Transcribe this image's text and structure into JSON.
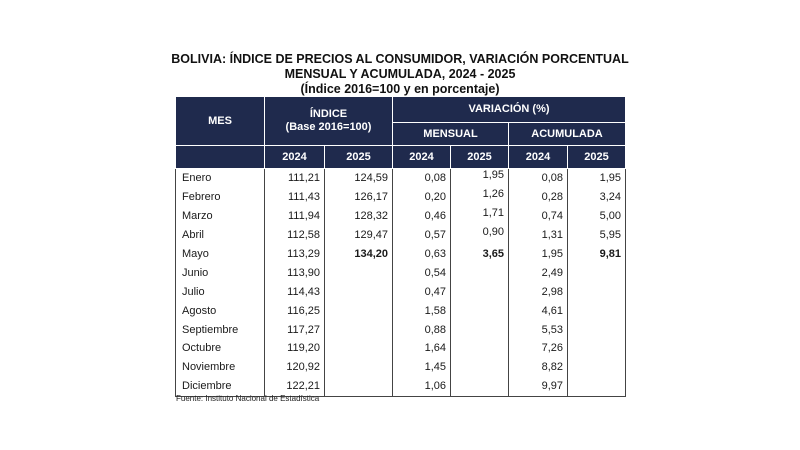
{
  "title": {
    "line1": "BOLIVIA: ÍNDICE DE PRECIOS AL CONSUMIDOR, VARIACIÓN PORCENTUAL",
    "line2": "MENSUAL Y ACUMULADA, 2024 - 2025",
    "line3": "(Índice 2016=100 y en porcentaje)"
  },
  "headers": {
    "mes": "MES",
    "indice_line1": "ÍNDICE",
    "indice_line2": "(Base 2016=100)",
    "variacion": "VARIACIÓN (%)",
    "mensual": "MENSUAL",
    "acumulada": "ACUMULADA",
    "years": [
      "2024",
      "2025",
      "2024",
      "2025",
      "2024",
      "2025"
    ]
  },
  "rows": [
    {
      "mes": "Enero",
      "idx2024": "111,21",
      "idx2025": "124,59",
      "men2024": "0,08",
      "men2025": "1,95",
      "acu2024": "0,08",
      "acu2025": "1,95"
    },
    {
      "mes": "Febrero",
      "idx2024": "111,43",
      "idx2025": "126,17",
      "men2024": "0,20",
      "men2025": "1,26",
      "acu2024": "0,28",
      "acu2025": "3,24"
    },
    {
      "mes": "Marzo",
      "idx2024": "111,94",
      "idx2025": "128,32",
      "men2024": "0,46",
      "men2025": "1,71",
      "acu2024": "0,74",
      "acu2025": "5,00"
    },
    {
      "mes": "Abril",
      "idx2024": "112,58",
      "idx2025": "129,47",
      "men2024": "0,57",
      "men2025": "0,90",
      "acu2024": "1,31",
      "acu2025": "5,95"
    },
    {
      "mes": "Mayo",
      "idx2024": "113,29",
      "idx2025": "134,20",
      "men2024": "0,63",
      "men2025": "3,65",
      "acu2024": "1,95",
      "acu2025": "9,81"
    },
    {
      "mes": "Junio",
      "idx2024": "113,90",
      "idx2025": "",
      "men2024": "0,54",
      "men2025": "",
      "acu2024": "2,49",
      "acu2025": ""
    },
    {
      "mes": "Julio",
      "idx2024": "114,43",
      "idx2025": "",
      "men2024": "0,47",
      "men2025": "",
      "acu2024": "2,98",
      "acu2025": ""
    },
    {
      "mes": "Agosto",
      "idx2024": "116,25",
      "idx2025": "",
      "men2024": "1,58",
      "men2025": "",
      "acu2024": "4,61",
      "acu2025": ""
    },
    {
      "mes": "Septiembre",
      "idx2024": "117,27",
      "idx2025": "",
      "men2024": "0,88",
      "men2025": "",
      "acu2024": "5,53",
      "acu2025": ""
    },
    {
      "mes": "Octubre",
      "idx2024": "119,20",
      "idx2025": "",
      "men2024": "1,64",
      "men2025": "",
      "acu2024": "7,26",
      "acu2025": ""
    },
    {
      "mes": "Noviembre",
      "idx2024": "120,92",
      "idx2025": "",
      "men2024": "1,45",
      "men2025": "",
      "acu2024": "8,82",
      "acu2025": ""
    },
    {
      "mes": "Diciembre",
      "idx2024": "122,21",
      "idx2025": "",
      "men2024": "1,06",
      "men2025": "",
      "acu2024": "9,97",
      "acu2025": ""
    }
  ],
  "source": "Fuente: Instituto Nacional de Estadística",
  "colors": {
    "header_bg": "#1f2a4d",
    "header_text": "#ffffff"
  }
}
